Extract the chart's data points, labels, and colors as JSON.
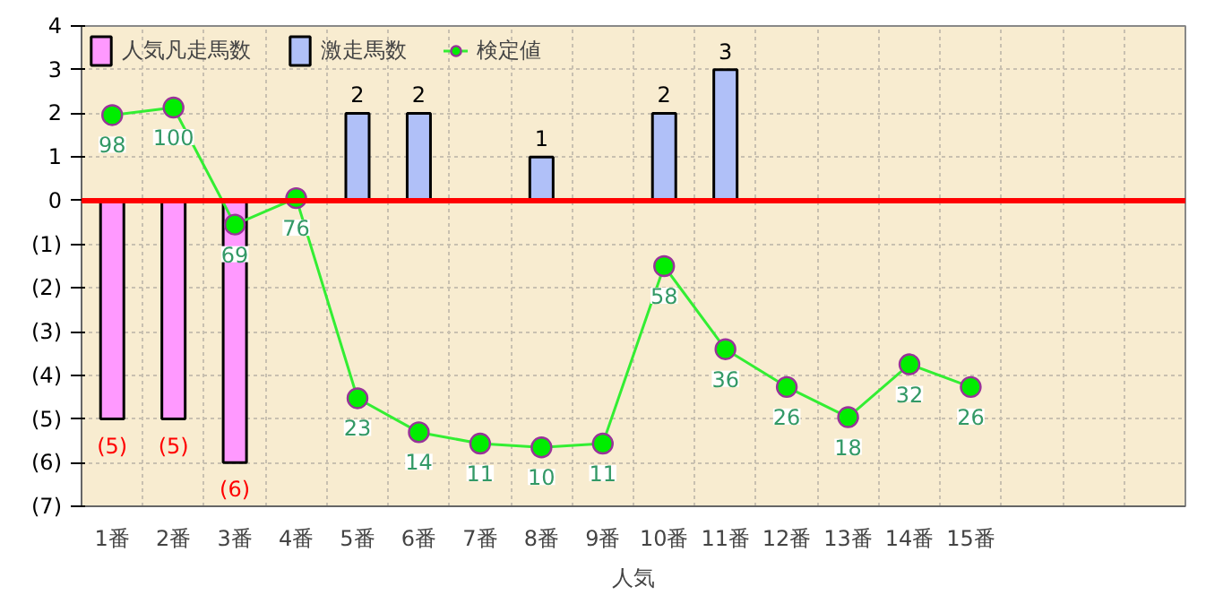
{
  "chart_data": {
    "type": "bar",
    "xlabel": "人気",
    "categories": [
      "1番",
      "2番",
      "3番",
      "4番",
      "5番",
      "6番",
      "7番",
      "8番",
      "9番",
      "10番",
      "11番",
      "12番",
      "13番",
      "14番",
      "15番",
      null,
      null,
      null
    ],
    "series": [
      {
        "name": "人気凡走馬数",
        "type": "bar",
        "color": "#ff99ff",
        "values": [
          -5,
          -5,
          -6,
          null,
          null,
          null,
          null,
          null,
          null,
          null,
          null,
          null,
          null,
          null,
          null,
          null,
          null,
          null
        ],
        "value_labels": [
          "(5)",
          "(5)",
          "(6)",
          null,
          null,
          null,
          null,
          null,
          null,
          null,
          null,
          null,
          null,
          null,
          null,
          null,
          null,
          null
        ]
      },
      {
        "name": "激走馬数",
        "type": "bar",
        "color": "#b0c0f8",
        "values": [
          null,
          null,
          null,
          null,
          2,
          2,
          null,
          1,
          null,
          2,
          3,
          null,
          null,
          null,
          null,
          null,
          null,
          null
        ],
        "value_labels": [
          null,
          null,
          null,
          null,
          "2",
          "2",
          null,
          "1",
          null,
          "2",
          "3",
          null,
          null,
          null,
          null,
          null,
          null,
          null
        ]
      },
      {
        "name": "検定値",
        "type": "line",
        "axis": "y2",
        "color": "#33ee33",
        "marker": "circle",
        "values": [
          98,
          100,
          69,
          76,
          23,
          14,
          11,
          10,
          11,
          58,
          36,
          26,
          18,
          32,
          26,
          null,
          null,
          null
        ],
        "value_labels": [
          "98",
          "100",
          "69",
          "76",
          "23",
          "14",
          "11",
          "10",
          "11",
          "58",
          "36",
          "26",
          "18",
          "32",
          "26",
          null,
          null,
          null
        ]
      }
    ],
    "ylim": [
      -7,
      4
    ],
    "yticks": [
      4,
      3,
      2,
      1,
      0,
      {
        "value": -1,
        "label": "(1)"
      },
      {
        "value": -2,
        "label": "(2)"
      },
      {
        "value": -3,
        "label": "(3)"
      },
      {
        "value": -4,
        "label": "(4)"
      },
      {
        "value": -5,
        "label": "(5)"
      },
      {
        "value": -6,
        "label": "(6)"
      },
      {
        "value": -7,
        "label": "(7)"
      }
    ],
    "y2lim": [
      -5.6,
      121.6
    ],
    "tick_labels": "xy",
    "ref_lines": [
      {
        "axis": "y",
        "value": 0,
        "color": "#ff0000"
      }
    ],
    "grid": true,
    "legend": "top left"
  }
}
